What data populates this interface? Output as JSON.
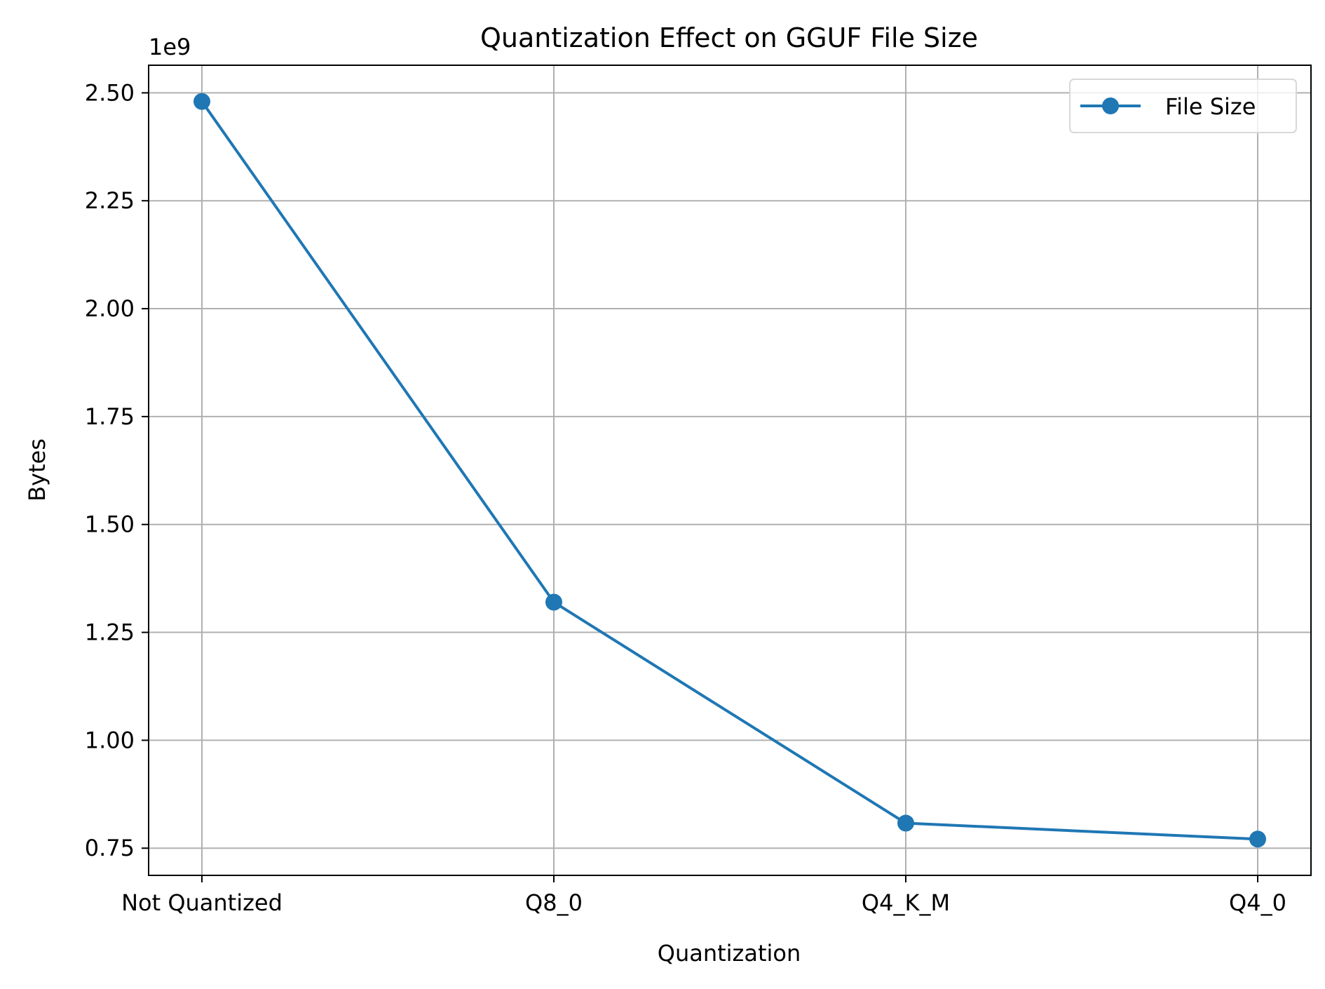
{
  "chart_data": {
    "type": "line",
    "title": "Quantization Effect on GGUF File Size",
    "xlabel": "Quantization",
    "ylabel": "Bytes",
    "y_offset_label": "1e9",
    "categories": [
      "Not Quantized",
      "Q8_0",
      "Q4_K_M",
      "Q4_0"
    ],
    "series": [
      {
        "name": "File Size",
        "values": [
          2480000000,
          1320000000,
          808000000,
          771000000
        ],
        "color": "#1f77b4",
        "marker": "circle"
      }
    ],
    "ylim": [
      687000000,
      2564000000
    ],
    "yticks": [
      0.75,
      1.0,
      1.25,
      1.5,
      1.75,
      2.0,
      2.25,
      2.5
    ],
    "ytick_labels": [
      "0.75",
      "1.00",
      "1.25",
      "1.50",
      "1.75",
      "2.00",
      "2.25",
      "2.50"
    ],
    "y_scale": 1000000000,
    "grid": true,
    "legend_position": "top-right",
    "colors": {
      "grid": "#b0b0b0",
      "axis": "#000000",
      "background": "#ffffff"
    }
  }
}
